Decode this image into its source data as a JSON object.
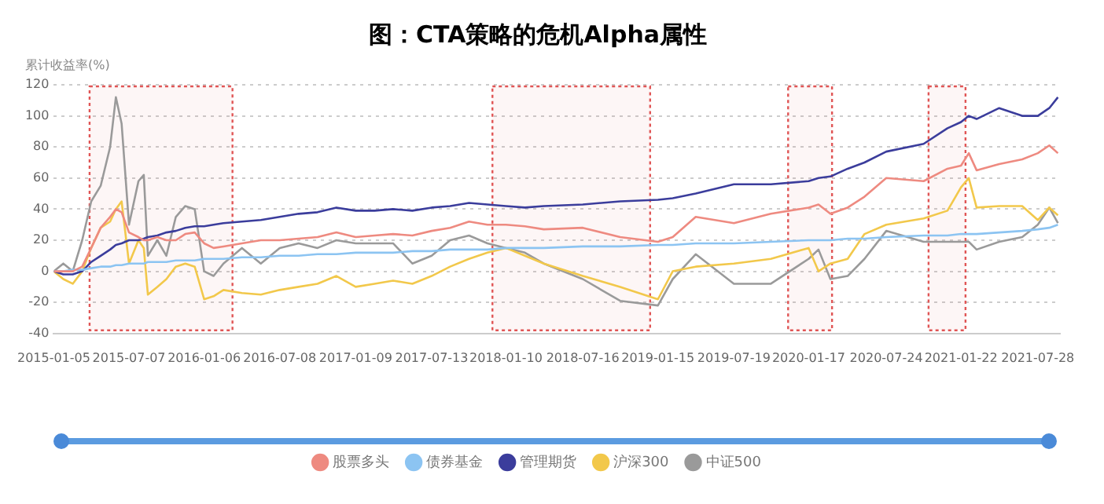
{
  "chart_data": {
    "type": "line",
    "title": "图：CTA策略的危机Alpha属性",
    "ylabel": "累计收益率(%)",
    "x": [
      "2015-01-05",
      "2015-01-28",
      "2015-02-20",
      "2015-03-15",
      "2015-04-06",
      "2015-04-29",
      "2015-05-22",
      "2015-06-05",
      "2015-06-19",
      "2015-07-07",
      "2015-07-30",
      "2015-08-12",
      "2015-08-22",
      "2015-09-14",
      "2015-10-06",
      "2015-10-29",
      "2015-11-21",
      "2015-12-14",
      "2016-01-06",
      "2016-01-29",
      "2016-02-22",
      "2016-04-07",
      "2016-05-23",
      "2016-07-08",
      "2016-08-23",
      "2016-10-08",
      "2016-11-23",
      "2017-01-09",
      "2017-02-24",
      "2017-04-10",
      "2017-05-27",
      "2017-07-13",
      "2017-08-27",
      "2017-10-12",
      "2017-11-26",
      "2018-01-10",
      "2018-02-25",
      "2018-04-12",
      "2018-07-16",
      "2018-10-15",
      "2019-01-15",
      "2019-02-20",
      "2019-04-17",
      "2019-07-19",
      "2019-10-17",
      "2020-01-17",
      "2020-02-10",
      "2020-03-10",
      "2020-04-21",
      "2020-06-01",
      "2020-07-24",
      "2020-10-23",
      "2020-12-20",
      "2021-01-22",
      "2021-02-10",
      "2021-03-01",
      "2021-04-25",
      "2021-06-20",
      "2021-07-28",
      "2021-08-25",
      "2021-09-15"
    ],
    "series": [
      {
        "name": "股票多头",
        "color": "#ee8a80",
        "values": [
          0,
          0,
          0,
          3,
          15,
          28,
          35,
          40,
          38,
          25,
          22,
          20,
          20,
          22,
          20,
          20,
          24,
          25,
          18,
          15,
          16,
          18,
          20,
          20,
          21,
          22,
          25,
          22,
          23,
          24,
          23,
          26,
          28,
          32,
          30,
          30,
          29,
          27,
          28,
          22,
          19,
          22,
          35,
          31,
          37,
          41,
          43,
          37,
          41,
          48,
          60,
          58,
          66,
          68,
          76,
          65,
          69,
          72,
          76,
          81,
          76
        ]
      },
      {
        "name": "债券基金",
        "color": "#8cc4f2",
        "values": [
          0,
          0,
          1,
          1,
          2,
          3,
          3,
          4,
          4,
          5,
          5,
          5,
          6,
          6,
          6,
          7,
          7,
          7,
          8,
          8,
          8,
          9,
          9,
          10,
          10,
          11,
          11,
          12,
          12,
          12,
          13,
          13,
          14,
          14,
          14,
          15,
          15,
          15,
          16,
          16,
          17,
          17,
          18,
          18,
          19,
          20,
          20,
          20,
          21,
          21,
          22,
          23,
          23,
          24,
          24,
          24,
          25,
          26,
          27,
          28,
          30
        ]
      },
      {
        "name": "管理期货",
        "color": "#3b3d9c",
        "values": [
          0,
          -2,
          -2,
          0,
          6,
          10,
          14,
          17,
          18,
          20,
          20,
          21,
          22,
          23,
          25,
          26,
          28,
          29,
          29,
          30,
          31,
          32,
          33,
          35,
          37,
          38,
          41,
          39,
          39,
          40,
          39,
          41,
          42,
          44,
          43,
          42,
          41,
          42,
          43,
          45,
          46,
          47,
          50,
          56,
          56,
          58,
          60,
          61,
          66,
          70,
          77,
          82,
          92,
          96,
          100,
          98,
          105,
          100,
          100,
          105,
          112
        ]
      },
      {
        "name": "沪深300",
        "color": "#f2c84b",
        "values": [
          0,
          -5,
          -8,
          0,
          15,
          28,
          32,
          40,
          45,
          5,
          20,
          15,
          -15,
          -10,
          -5,
          3,
          5,
          3,
          -18,
          -16,
          -12,
          -14,
          -15,
          -12,
          -10,
          -8,
          -3,
          -10,
          -8,
          -6,
          -8,
          -3,
          3,
          8,
          12,
          15,
          10,
          5,
          -3,
          -10,
          -18,
          0,
          3,
          5,
          8,
          15,
          0,
          5,
          8,
          24,
          30,
          34,
          39,
          54,
          60,
          41,
          42,
          42,
          33,
          41,
          36
        ]
      },
      {
        "name": "中证500",
        "color": "#9a9a9a",
        "values": [
          0,
          5,
          0,
          20,
          45,
          55,
          80,
          112,
          95,
          30,
          58,
          62,
          10,
          20,
          10,
          35,
          42,
          40,
          0,
          -3,
          5,
          15,
          5,
          15,
          18,
          15,
          20,
          18,
          18,
          18,
          5,
          10,
          20,
          23,
          18,
          15,
          12,
          5,
          -5,
          -19,
          -22,
          -5,
          11,
          -8,
          -8,
          8,
          14,
          -5,
          -3,
          8,
          26,
          19,
          19,
          19,
          19,
          14,
          19,
          22,
          30,
          41,
          31
        ]
      }
    ],
    "xlim": [
      "2015-01-05",
      "2021-09-20"
    ],
    "xticks": [
      "2015-01-05",
      "2015-07-07",
      "2016-01-06",
      "2016-07-08",
      "2017-01-09",
      "2017-07-13",
      "2018-01-10",
      "2018-07-16",
      "2019-01-15",
      "2019-07-19",
      "2020-01-17",
      "2020-07-24",
      "2021-01-22",
      "2021-07-28"
    ],
    "ylim": [
      -40,
      120
    ],
    "yticks": [
      -40,
      -20,
      0,
      20,
      40,
      60,
      80,
      100,
      120
    ],
    "bands": [
      {
        "axis": "x",
        "from": "2015-04-02",
        "to": "2016-03-15",
        "color": "#e05555"
      },
      {
        "axis": "x",
        "from": "2017-12-08",
        "to": "2018-12-27",
        "color": "#e05555"
      },
      {
        "axis": "x",
        "from": "2019-11-28",
        "to": "2020-03-14",
        "color": "#e05555"
      },
      {
        "axis": "x",
        "from": "2020-11-04",
        "to": "2021-02-02",
        "color": "#e05555"
      }
    ],
    "grid": "y",
    "legend": "bottom",
    "marker": "none",
    "line_style": "solid"
  }
}
